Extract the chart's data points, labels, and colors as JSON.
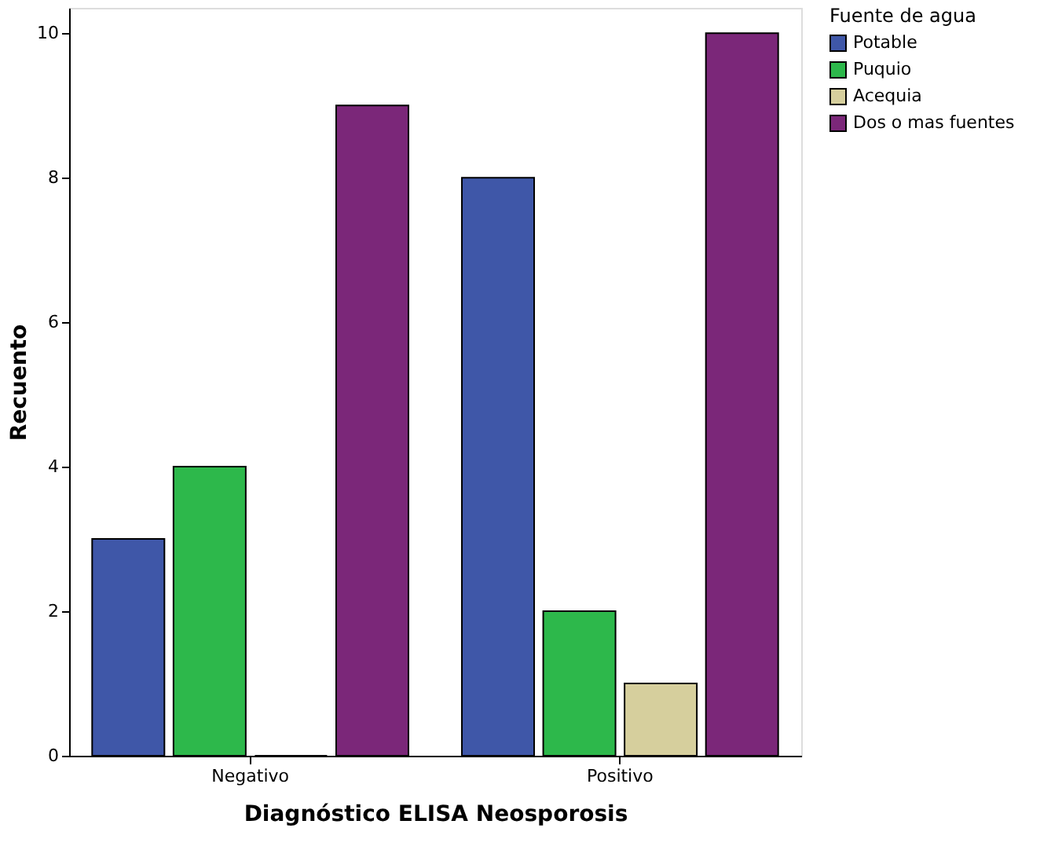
{
  "chart_data": {
    "type": "bar",
    "xlabel": "Diagnóstico ELISA Neosporosis",
    "ylabel": "Recuento",
    "legend_title": "Fuente de agua",
    "categories": [
      "Negativo",
      "Positivo"
    ],
    "series": [
      {
        "name": "Potable",
        "color": "#3f57a8",
        "values": [
          3,
          8
        ]
      },
      {
        "name": "Puquio",
        "color": "#2db84b",
        "values": [
          4,
          2
        ]
      },
      {
        "name": "Acequia",
        "color": "#d6cf9d",
        "values": [
          0,
          1
        ]
      },
      {
        "name": "Dos o mas fuentes",
        "color": "#7b2779",
        "values": [
          9,
          10
        ]
      }
    ],
    "ylim": [
      0,
      10.35
    ],
    "yticks": [
      0,
      2,
      4,
      6,
      8,
      10
    ],
    "grid": false,
    "legend": "top right"
  }
}
